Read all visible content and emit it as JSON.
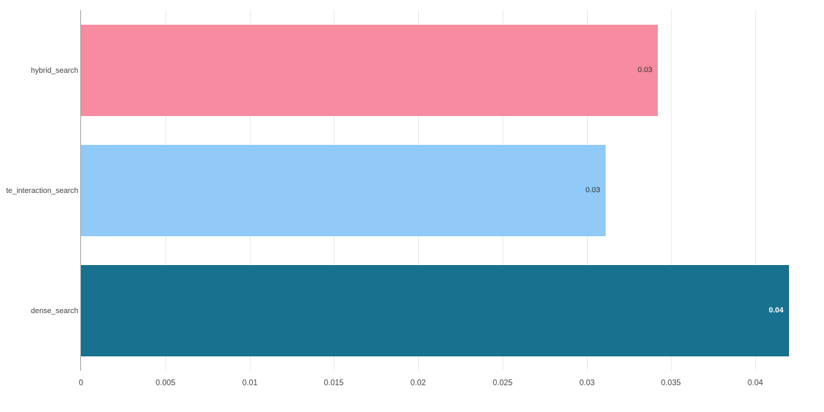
{
  "chart_data": {
    "type": "bar",
    "orientation": "horizontal",
    "title": "",
    "xlabel": "",
    "ylabel": "",
    "categories": [
      "hybrid_search",
      "te_interaction_search",
      "dense_search"
    ],
    "values": [
      0.0342,
      0.0311,
      0.042
    ],
    "value_labels": [
      "0.03",
      "0.03",
      "0.04"
    ],
    "bar_colors": [
      "#f78ba0",
      "#8fcaf8",
      "#17718f"
    ],
    "value_label_colors": [
      "#2f2f2f",
      "#2f2f2f",
      "#ffffff"
    ],
    "value_label_bold": [
      false,
      false,
      true
    ],
    "x_ticks": [
      0,
      0.005,
      0.01,
      0.015,
      0.02,
      0.025,
      0.03,
      0.035,
      0.04
    ],
    "x_tick_labels": [
      "0",
      "0.005",
      "0.01",
      "0.015",
      "0.02",
      "0.025",
      "0.03",
      "0.035",
      "0.04"
    ],
    "xlim": [
      0,
      0.0427
    ],
    "grid": true,
    "legend_position": "none",
    "axis_color": "#999999",
    "grid_color": "#e8e8e8",
    "text_color": "#444444",
    "background": "#ffffff"
  }
}
